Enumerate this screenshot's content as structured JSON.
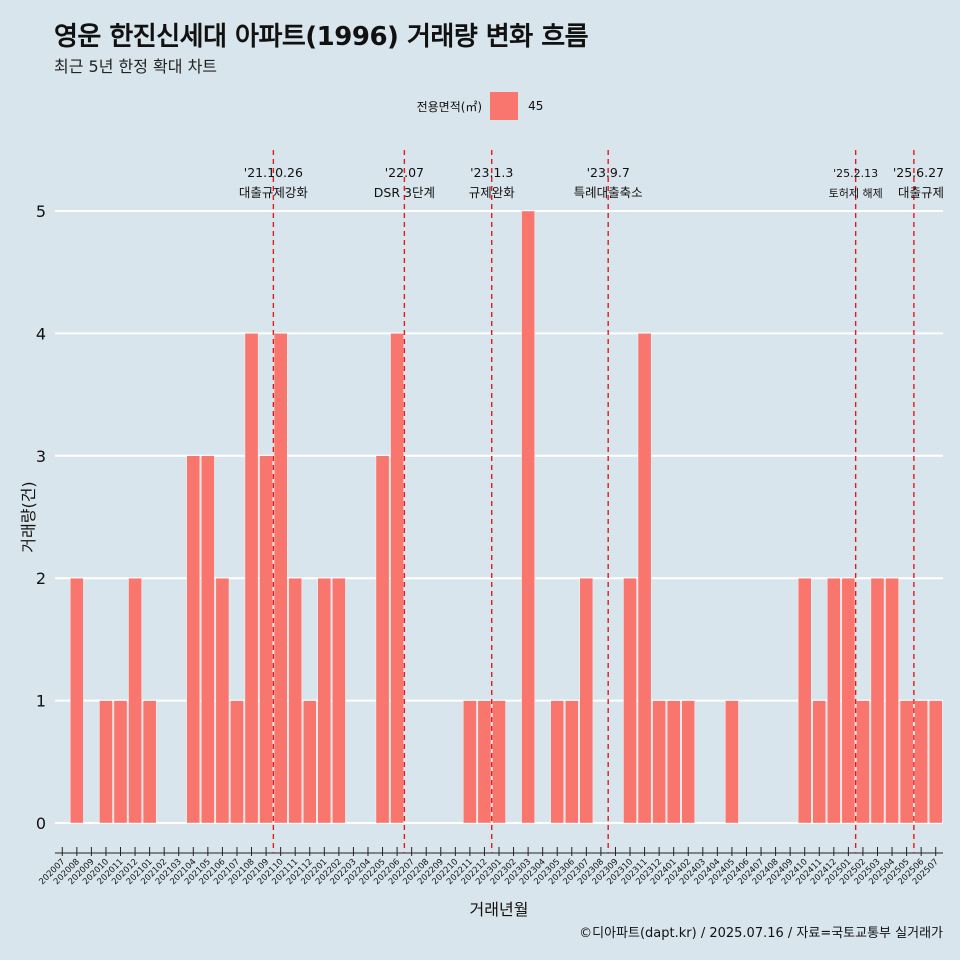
{
  "title": "영운 한진신세대 아파트(1996) 거래량 변화 흐름",
  "subtitle": "최근 5년 한정 확대 차트",
  "legend": {
    "title": "전용면적(㎡)",
    "item": "45"
  },
  "caption": "©디아파트(dapt.kr) / 2025.07.16 / 자료=국토교통부 실거래가",
  "colors": {
    "bar": "#f8766d",
    "background": "#d8e5ec",
    "grid": "#ffffff",
    "event_line": "#e41a1c"
  },
  "chart_data": {
    "type": "bar",
    "xlabel": "거래년월",
    "ylabel": "거래량(건)",
    "ylim": [
      0,
      5
    ],
    "yticks": [
      0,
      1,
      2,
      3,
      4,
      5
    ],
    "grid": true,
    "legend_position": "top",
    "categories": [
      "202007",
      "202008",
      "202009",
      "202010",
      "202011",
      "202012",
      "202101",
      "202102",
      "202103",
      "202104",
      "202105",
      "202106",
      "202107",
      "202108",
      "202109",
      "202110",
      "202111",
      "202112",
      "202201",
      "202202",
      "202203",
      "202204",
      "202205",
      "202206",
      "202207",
      "202208",
      "202209",
      "202210",
      "202211",
      "202212",
      "202301",
      "202302",
      "202303",
      "202304",
      "202305",
      "202306",
      "202307",
      "202308",
      "202309",
      "202310",
      "202311",
      "202312",
      "202401",
      "202402",
      "202403",
      "202404",
      "202405",
      "202406",
      "202407",
      "202408",
      "202409",
      "202410",
      "202411",
      "202412",
      "202501",
      "202502",
      "202503",
      "202504",
      "202505",
      "202506",
      "202507"
    ],
    "series": [
      {
        "name": "45",
        "values": [
          0,
          2,
          0,
          1,
          1,
          2,
          1,
          0,
          0,
          3,
          3,
          2,
          1,
          4,
          3,
          4,
          2,
          1,
          2,
          2,
          0,
          0,
          3,
          4,
          0,
          0,
          0,
          0,
          1,
          1,
          1,
          0,
          5,
          0,
          1,
          1,
          2,
          0,
          0,
          2,
          4,
          1,
          1,
          1,
          0,
          0,
          1,
          0,
          0,
          0,
          0,
          2,
          1,
          2,
          2,
          1,
          2,
          2,
          1,
          1,
          1
        ]
      }
    ],
    "annotations": [
      {
        "category": "202110",
        "date": "'21.10.26",
        "label": "대출규제강화"
      },
      {
        "category": "202207",
        "date": "'22.07",
        "label": "DSR 3단계"
      },
      {
        "category": "202301",
        "date": "'23.1.3",
        "label": "규제완화"
      },
      {
        "category": "202309",
        "date": "'23.9.7",
        "label": "특례대출축소"
      },
      {
        "category": "202502",
        "date": "'25.2.13",
        "label": "토허제 해제"
      },
      {
        "category": "202506",
        "date": "'25.6.27",
        "label": "대출규제"
      }
    ]
  }
}
